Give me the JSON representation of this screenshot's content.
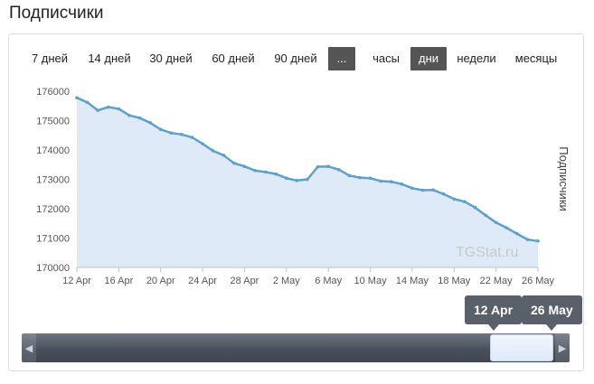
{
  "page": {
    "title": "Подписчики"
  },
  "toolbar": {
    "ranges": [
      "7 дней",
      "14 дней",
      "30 дней",
      "60 дней",
      "90 дней",
      "..."
    ],
    "units": [
      "часы",
      "дни",
      "недели",
      "месяцы"
    ],
    "active_unit": "дни",
    "active_range": "..."
  },
  "watermark": "TGStat.ru",
  "navigator": {
    "from_label": "12 Apr",
    "to_label": "26 May"
  },
  "colors": {
    "line": "#5ea0c8",
    "area": "#deeaf8",
    "active_button": "#555555"
  },
  "chart_data": {
    "type": "area",
    "title": "",
    "xlabel": "",
    "ylabel": "Подписчики",
    "ylim": [
      170000,
      176000
    ],
    "yticks": [
      176000,
      175000,
      174000,
      173000,
      172000,
      171000,
      170000
    ],
    "xticks": [
      "12 Apr",
      "16 Apr",
      "20 Apr",
      "24 Apr",
      "28 Apr",
      "2 May",
      "6 May",
      "10 May",
      "14 May",
      "18 May",
      "22 May",
      "26 May"
    ],
    "grid": false,
    "x": [
      "12 Apr",
      "13 Apr",
      "14 Apr",
      "15 Apr",
      "16 Apr",
      "17 Apr",
      "18 Apr",
      "19 Apr",
      "20 Apr",
      "21 Apr",
      "22 Apr",
      "23 Apr",
      "24 Apr",
      "25 Apr",
      "26 Apr",
      "27 Apr",
      "28 Apr",
      "29 Apr",
      "30 Apr",
      "1 May",
      "2 May",
      "3 May",
      "4 May",
      "5 May",
      "6 May",
      "7 May",
      "8 May",
      "9 May",
      "10 May",
      "11 May",
      "12 May",
      "13 May",
      "14 May",
      "15 May",
      "16 May",
      "17 May",
      "18 May",
      "19 May",
      "20 May",
      "21 May",
      "22 May",
      "23 May",
      "24 May",
      "25 May",
      "26 May"
    ],
    "series": [
      {
        "values": [
          175780,
          175620,
          175350,
          175460,
          175400,
          175180,
          175090,
          174930,
          174700,
          174580,
          174530,
          174430,
          174210,
          173970,
          173820,
          173550,
          173440,
          173300,
          173250,
          173180,
          173040,
          172960,
          173000,
          173430,
          173440,
          173330,
          173130,
          173060,
          173040,
          172940,
          172920,
          172840,
          172700,
          172630,
          172640,
          172500,
          172330,
          172240,
          172040,
          171780,
          171530,
          171350,
          171150,
          170950,
          170900
        ]
      }
    ]
  }
}
